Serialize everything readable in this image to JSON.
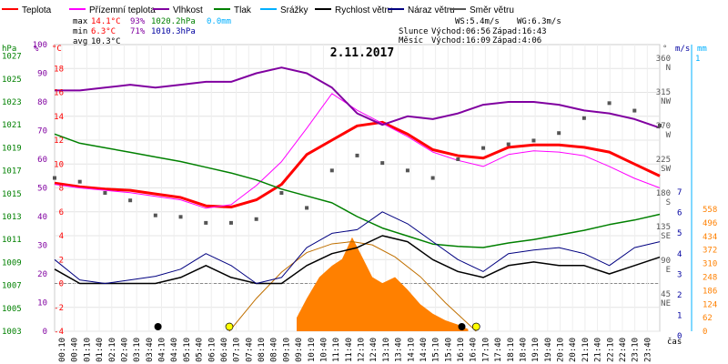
{
  "legend": [
    {
      "label": "Teplota",
      "color": "#ff0000"
    },
    {
      "label": "Přízemní teplota",
      "color": "#ff00ff"
    },
    {
      "label": "Vlhkost",
      "color": "#8000a0"
    },
    {
      "label": "Tlak",
      "color": "#008000"
    },
    {
      "label": "Srážky",
      "color": "#00b0ff"
    },
    {
      "label": "Rychlost větru",
      "color": "#000000"
    },
    {
      "label": "Náraz větru",
      "color": "#000080"
    },
    {
      "label": "Směr větru",
      "color": "#555555"
    }
  ],
  "stats": {
    "max_label": "max",
    "max_temp": "14.1°C",
    "max_hum": "93%",
    "max_press": "1020.2hPa",
    "max_rain": "0.0mm",
    "min_label": "min",
    "min_temp": "6.3°C",
    "min_hum": "71%",
    "min_press": "1010.3hPa",
    "avg_label": "avg",
    "avg_temp": "10.3°C"
  },
  "wind_info": {
    "ws": "WS:5.4m/s",
    "wg": "WG:6.3m/s"
  },
  "sun": {
    "label": "Slunce",
    "rise": "Východ:06:56",
    "set": "Západ:16:43"
  },
  "moon": {
    "label": "Měsíc",
    "rise": "Východ:16:09",
    "set": "Západ:4:06"
  },
  "chart_data": {
    "type": "line",
    "title": "2.11.2017",
    "xlabel": "čas",
    "x_ticks": [
      "00:10",
      "00:40",
      "01:10",
      "01:40",
      "02:10",
      "02:40",
      "03:10",
      "03:40",
      "04:10",
      "04:40",
      "05:10",
      "05:40",
      "06:10",
      "06:40",
      "07:10",
      "07:40",
      "08:10",
      "08:40",
      "09:10",
      "09:40",
      "10:10",
      "10:40",
      "11:10",
      "11:40",
      "12:10",
      "12:40",
      "13:10",
      "13:40",
      "14:10",
      "14:40",
      "15:10",
      "15:40",
      "16:10",
      "16:40",
      "17:10",
      "17:40",
      "18:10",
      "18:40",
      "19:10",
      "19:40",
      "20:10",
      "20:40",
      "21:10",
      "21:40",
      "22:10",
      "22:40",
      "23:10",
      "23:40"
    ],
    "axes": {
      "hpa": {
        "label": "hPa",
        "color": "#008000",
        "range": [
          1003,
          1028
        ],
        "ticks": [
          "1027",
          "1025",
          "1023",
          "1021",
          "1019",
          "1017",
          "1015",
          "1013",
          "1011",
          "1009",
          "1007",
          "1005",
          "1003"
        ]
      },
      "pct": {
        "label": "%",
        "color": "#8000a0",
        "range": [
          0,
          100
        ],
        "ticks": [
          "100",
          "90",
          "80",
          "70",
          "60",
          "50",
          "40",
          "30",
          "20",
          "10",
          "0"
        ]
      },
      "temp": {
        "label": "°C",
        "color": "#ff0000",
        "range": [
          -4,
          20
        ],
        "ticks": [
          "18",
          "16",
          "14",
          "12",
          "10",
          "8",
          "6",
          "4",
          "2",
          "0",
          "-2",
          "-4"
        ]
      },
      "dir": {
        "label": "°",
        "color": "#555555",
        "ticks": [
          "360",
          "315",
          "270",
          "225",
          "180",
          "135",
          "90",
          "45"
        ],
        "cardinals": [
          "N",
          "NW",
          "W",
          "SW",
          "S",
          "SE",
          "E",
          "NE"
        ]
      },
      "ms": {
        "label": "m/s",
        "color": "#0000a0",
        "ticks": [
          "7",
          "6",
          "5",
          "4",
          "3",
          "2",
          "1",
          "0"
        ]
      },
      "mm": {
        "label": "mm",
        "color": "#00b0ff",
        "ticks": [
          "1"
        ]
      },
      "solar": {
        "color": "#ff8000",
        "ticks": [
          "558",
          "496",
          "434",
          "372",
          "310",
          "248",
          "186",
          "124",
          "62",
          "0"
        ]
      }
    },
    "series": [
      {
        "name": "Teplota",
        "color": "#ff0000",
        "x": [
          0,
          1,
          2,
          3,
          4,
          5,
          6,
          7,
          8,
          9,
          10,
          11,
          12,
          13,
          14,
          15,
          16,
          17,
          18,
          19,
          20,
          21,
          22,
          23,
          24
        ],
        "y": [
          8.4,
          8.1,
          7.9,
          7.8,
          7.5,
          7.2,
          6.5,
          6.4,
          7.0,
          8.3,
          10.8,
          12.0,
          13.2,
          13.5,
          12.5,
          11.2,
          10.7,
          10.5,
          11.4,
          11.6,
          11.6,
          11.4,
          11.0,
          10.0,
          9.0
        ]
      },
      {
        "name": "Přízemní teplota",
        "color": "#ff00ff",
        "x": [
          0,
          1,
          2,
          3,
          4,
          5,
          6,
          7,
          8,
          9,
          10,
          11,
          12,
          13,
          14,
          15,
          16,
          17,
          18,
          19,
          20,
          21,
          22,
          23,
          24
        ],
        "y": [
          8.3,
          8.0,
          7.8,
          7.6,
          7.3,
          7.0,
          6.3,
          6.6,
          8.2,
          10.2,
          13.0,
          15.9,
          14.5,
          13.4,
          12.3,
          11.0,
          10.3,
          9.8,
          10.8,
          11.1,
          11.0,
          10.7,
          9.8,
          8.8,
          8.0
        ]
      },
      {
        "name": "Vlhkost",
        "color": "#8000a0",
        "x": [
          0,
          1,
          2,
          3,
          4,
          5,
          6,
          7,
          8,
          9,
          10,
          11,
          12,
          13,
          14,
          15,
          16,
          17,
          18,
          19,
          20,
          21,
          22,
          23,
          24
        ],
        "y": [
          84,
          84,
          85,
          86,
          85,
          86,
          87,
          87,
          90,
          92,
          90,
          85,
          76,
          72,
          75,
          74,
          76,
          79,
          80,
          80,
          79,
          77,
          76,
          74,
          71
        ]
      },
      {
        "name": "Tlak",
        "color": "#008000",
        "x": [
          0,
          1,
          2,
          3,
          4,
          5,
          6,
          7,
          8,
          9,
          10,
          11,
          12,
          13,
          14,
          15,
          16,
          17,
          18,
          19,
          20,
          21,
          22,
          23,
          24
        ],
        "y": [
          1020.2,
          1019.4,
          1019.0,
          1018.6,
          1018.2,
          1017.8,
          1017.3,
          1016.8,
          1016.2,
          1015.4,
          1014.8,
          1014.2,
          1013.0,
          1012.0,
          1011.3,
          1010.6,
          1010.4,
          1010.3,
          1010.7,
          1011.0,
          1011.4,
          1011.8,
          1012.3,
          1012.7,
          1013.2
        ]
      },
      {
        "name": "Rychlost větru",
        "color": "#000000",
        "x": [
          0,
          1,
          2,
          3,
          4,
          5,
          6,
          7,
          8,
          9,
          10,
          11,
          12,
          13,
          14,
          15,
          16,
          17,
          18,
          19,
          20,
          21,
          22,
          23,
          24
        ],
        "y": [
          1.2,
          0,
          0,
          0,
          0,
          0.5,
          1.5,
          0.5,
          0,
          0,
          1.5,
          2.5,
          3,
          4,
          3.5,
          2,
          1,
          0.5,
          1.5,
          1.8,
          1.5,
          1.5,
          0.8,
          1.5,
          2.2
        ]
      },
      {
        "name": "Náraz větru",
        "color": "#000080",
        "x": [
          0,
          1,
          2,
          3,
          4,
          5,
          6,
          7,
          8,
          9,
          10,
          11,
          12,
          13,
          14,
          15,
          16,
          17,
          18,
          19,
          20,
          21,
          22,
          23,
          24
        ],
        "y": [
          2,
          0.3,
          0,
          0.3,
          0.6,
          1.2,
          2.5,
          1.5,
          0,
          0.5,
          3,
          4.2,
          4.5,
          6,
          5,
          3.5,
          2,
          1,
          2.5,
          2.8,
          3,
          2.5,
          1.5,
          3,
          3.5
        ]
      },
      {
        "name": "Směr větru",
        "color": "#555555",
        "x": [
          0,
          1,
          2,
          3,
          4,
          5,
          6,
          7,
          8,
          9,
          10,
          11,
          12,
          13,
          14,
          15,
          16,
          17,
          18,
          19,
          20,
          21,
          22,
          23,
          24
        ],
        "y": [
          200,
          195,
          180,
          170,
          150,
          148,
          140,
          140,
          145,
          180,
          160,
          210,
          230,
          220,
          210,
          200,
          225,
          240,
          245,
          250,
          260,
          280,
          300,
          290,
          270
        ]
      }
    ],
    "solar_radiation": {
      "color": "#ff8000",
      "x": [
        9.6,
        10,
        10.5,
        11,
        11.4,
        11.8,
        12.2,
        12.6,
        13,
        13.5,
        14,
        14.5,
        15,
        15.5,
        16,
        16.4
      ],
      "y": [
        62,
        150,
        248,
        300,
        330,
        430,
        340,
        248,
        220,
        248,
        190,
        124,
        80,
        50,
        30,
        10
      ]
    },
    "theoretical_radiation": {
      "color": "#c07000",
      "x": [
        6.93,
        8,
        9,
        10,
        11,
        11.8,
        12.6,
        13.5,
        14.5,
        15.5,
        16.72
      ],
      "y": [
        0,
        150,
        270,
        360,
        400,
        410,
        395,
        340,
        250,
        130,
        0
      ]
    },
    "sun_markers": {
      "rise": 6.93,
      "set": 16.72
    },
    "moon_markers": {
      "set": 4.1,
      "rise": 16.15
    }
  }
}
